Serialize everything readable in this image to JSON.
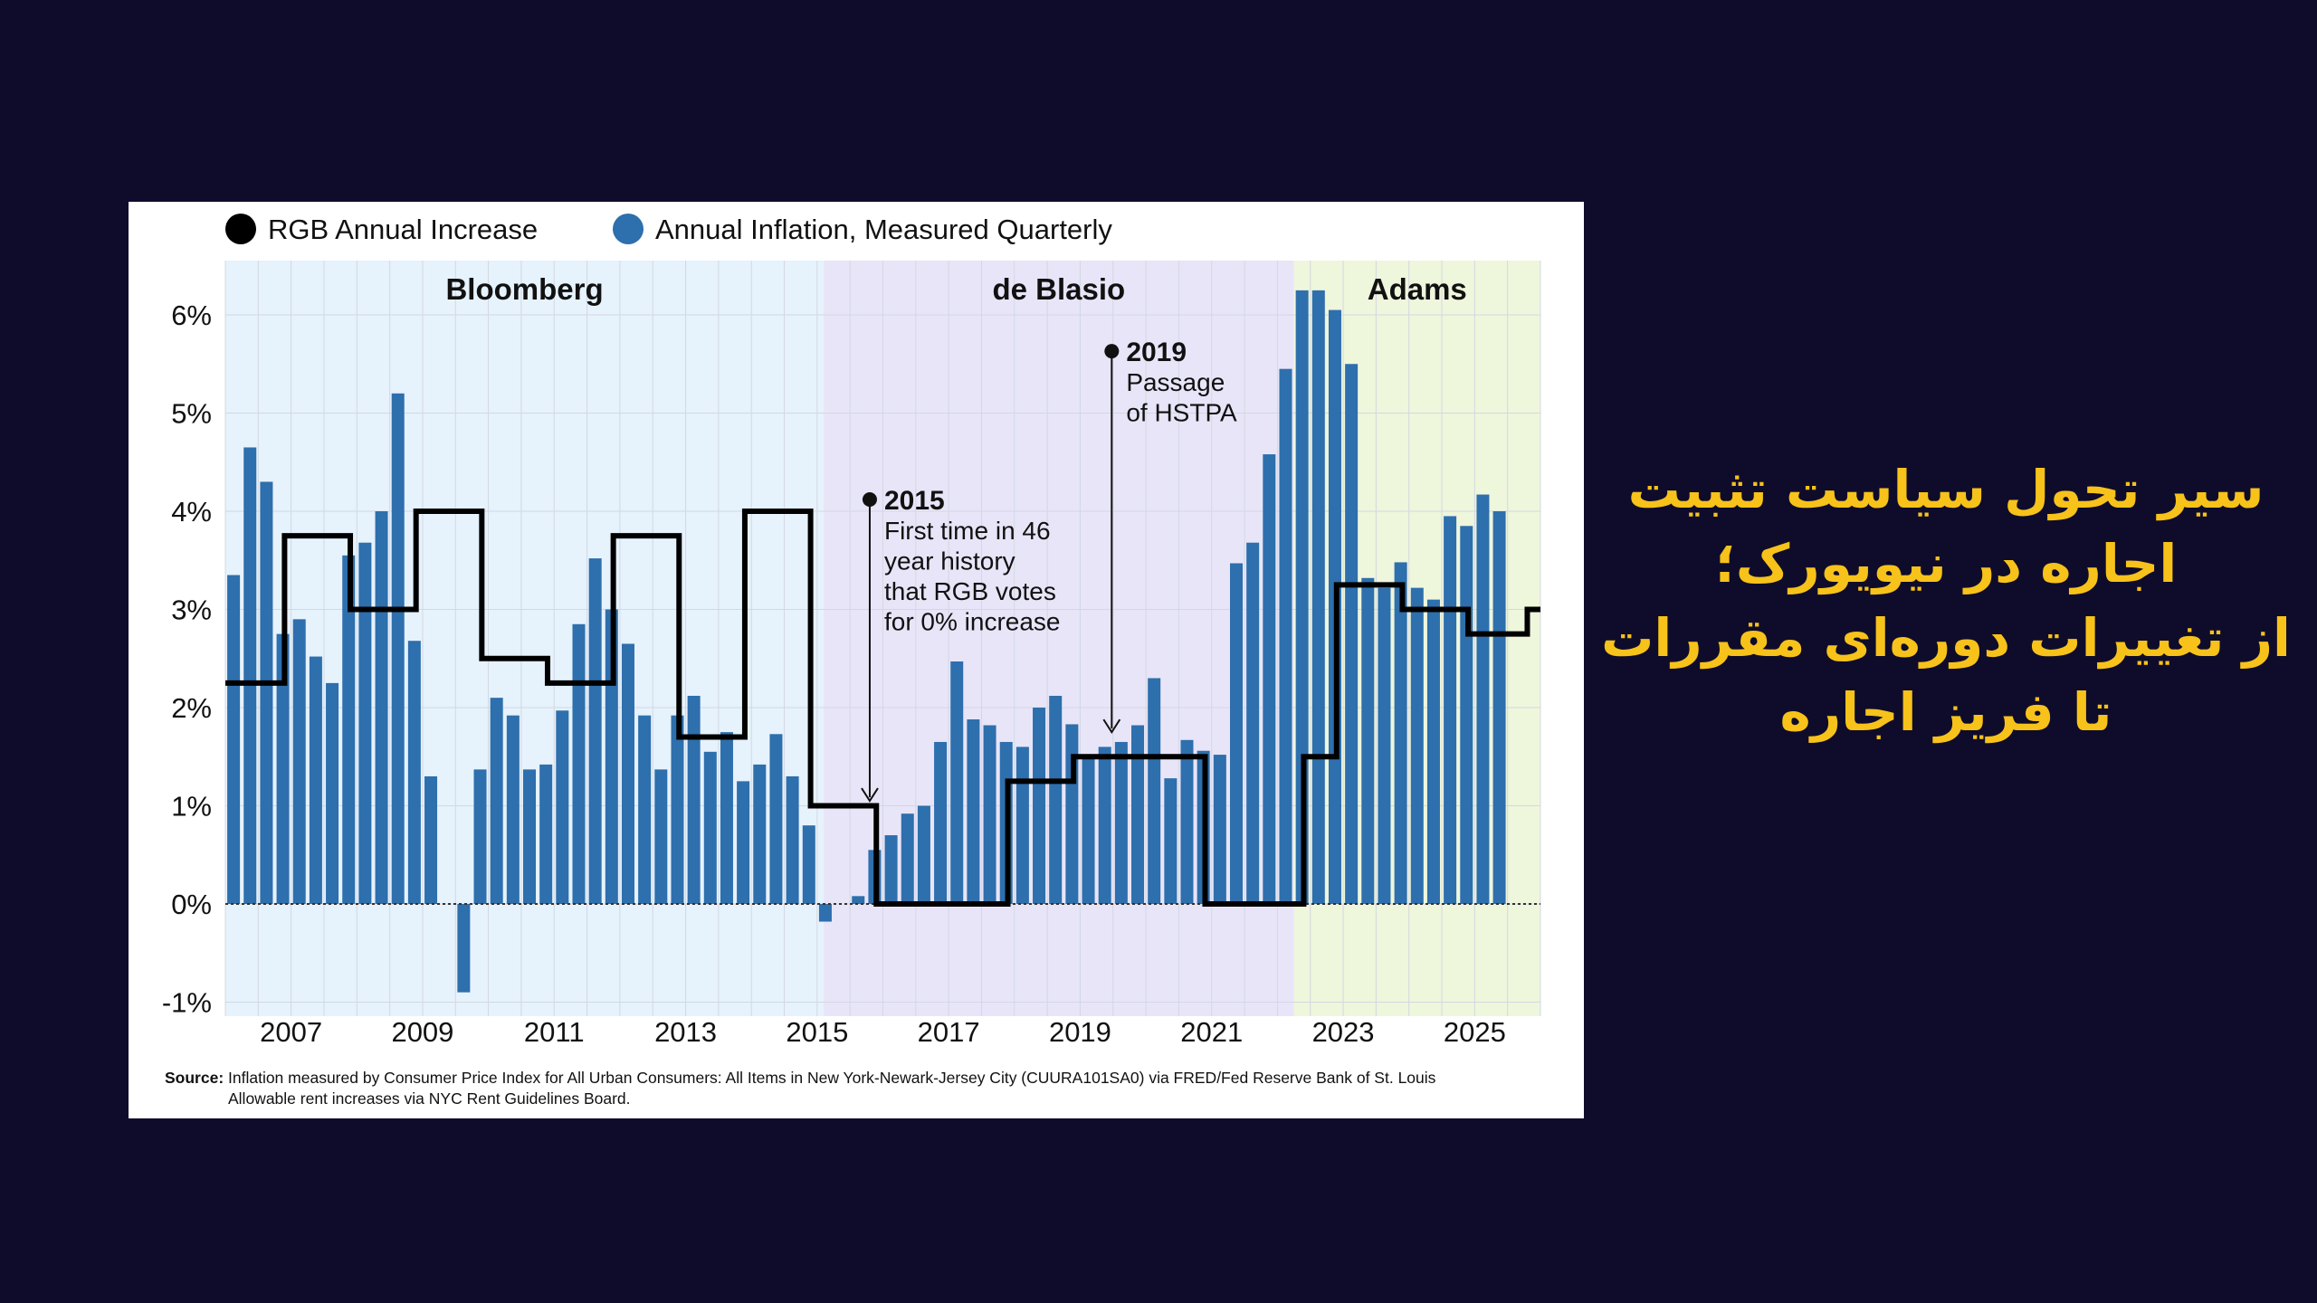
{
  "headline": {
    "lines": [
      "سیر تحول سیاست تثبیت",
      "اجاره در نیویورک؛",
      "از تغییرات دوره‌ای مقررات",
      "تا فریز اجاره"
    ],
    "color": "#f7c21a"
  },
  "source": {
    "label": "Source:",
    "line1": "Inflation measured by Consumer Price Index for All Urban Consumers: All Items in New York-Newark-Jersey City (CUURA101SA0) via FRED/Fed Reserve Bank of St. Louis",
    "line2": "Allowable rent increases via NYC Rent Guidelines Board."
  },
  "colors": {
    "background": "#0f0c2b",
    "bar": "#2e6fad",
    "step": "#000000",
    "bloomberg": "#e6f2fc",
    "deblasio": "#e8e5f8",
    "adams": "#eef6dc"
  },
  "chart_data": {
    "type": "bar",
    "title": "",
    "legend": {
      "placement": "top-left",
      "items": [
        {
          "label": "RGB Annual Increase",
          "color": "#000000"
        },
        {
          "label": "Annual Inflation, Measured Quarterly",
          "color": "#2e6fad"
        }
      ]
    },
    "y_ticks": [
      {
        "value": 6,
        "label": "6%"
      },
      {
        "value": 5,
        "label": "5%"
      },
      {
        "value": 4,
        "label": "4%"
      },
      {
        "value": 3,
        "label": "3%"
      },
      {
        "value": 2,
        "label": "2%"
      },
      {
        "value": 1,
        "label": "1%"
      },
      {
        "value": 0,
        "label": "0%"
      },
      {
        "value": -1,
        "label": "-1%"
      }
    ],
    "ylim": [
      -1,
      6.5
    ],
    "xlim": [
      2006,
      2026
    ],
    "x_ticks": [
      {
        "value": 2007,
        "label": "2007"
      },
      {
        "value": 2009,
        "label": "2009"
      },
      {
        "value": 2011,
        "label": "2011"
      },
      {
        "value": 2013,
        "label": "2013"
      },
      {
        "value": 2015,
        "label": "2015"
      },
      {
        "value": 2017,
        "label": "2017"
      },
      {
        "value": 2019,
        "label": "2019"
      },
      {
        "value": 2021,
        "label": "2021"
      },
      {
        "value": 2023,
        "label": "2023"
      },
      {
        "value": 2025,
        "label": "2025"
      }
    ],
    "grid": true,
    "eras": [
      {
        "name": "Bloomberg",
        "start": 2006,
        "end": 2015.1
      },
      {
        "name": "de Blasio",
        "start": 2015.1,
        "end": 2022.25
      },
      {
        "name": "Adams",
        "start": 2022.25,
        "end": 2026
      }
    ],
    "inflation": {
      "start": 2006.125,
      "step": 0.25,
      "values": [
        3.35,
        4.65,
        4.3,
        2.75,
        2.9,
        2.52,
        2.25,
        3.55,
        3.68,
        4.0,
        5.2,
        2.68,
        1.3,
        0,
        -0.9,
        1.37,
        2.1,
        1.92,
        1.37,
        1.42,
        1.97,
        2.85,
        3.52,
        3.0,
        2.65,
        1.92,
        1.37,
        1.92,
        2.12,
        1.55,
        1.75,
        1.25,
        1.42,
        1.73,
        1.3,
        0.8,
        -0.18,
        0,
        0.08,
        0.55,
        0.7,
        0.92,
        1.0,
        1.65,
        2.47,
        1.88,
        1.82,
        1.65,
        1.6,
        2.0,
        2.12,
        1.83,
        1.48,
        1.6,
        1.65,
        1.82,
        2.3,
        1.28,
        1.67,
        1.56,
        1.52,
        3.47,
        3.68,
        4.58,
        5.45,
        6.25,
        6.25,
        6.05,
        5.5,
        3.32,
        3.22,
        3.48,
        3.22,
        3.1,
        3.95,
        3.85,
        4.17,
        4.0
      ]
    },
    "rgb_increase": {
      "segments": [
        {
          "start": 2006,
          "end": 2006.9,
          "value": 2.25
        },
        {
          "start": 2006.9,
          "end": 2007.9,
          "value": 3.75
        },
        {
          "start": 2007.9,
          "end": 2008.9,
          "value": 3.0
        },
        {
          "start": 2008.9,
          "end": 2009.9,
          "value": 4.0
        },
        {
          "start": 2009.9,
          "end": 2010.9,
          "value": 2.5
        },
        {
          "start": 2010.9,
          "end": 2011.9,
          "value": 2.25
        },
        {
          "start": 2011.9,
          "end": 2012.9,
          "value": 3.75
        },
        {
          "start": 2012.9,
          "end": 2013.9,
          "value": 1.7
        },
        {
          "start": 2013.9,
          "end": 2014.9,
          "value": 4.0
        },
        {
          "start": 2014.9,
          "end": 2015.9,
          "value": 1.0
        },
        {
          "start": 2015.9,
          "end": 2016.9,
          "value": 0
        },
        {
          "start": 2016.9,
          "end": 2017.9,
          "value": 0
        },
        {
          "start": 2017.9,
          "end": 2018.9,
          "value": 1.25
        },
        {
          "start": 2018.9,
          "end": 2019.9,
          "value": 1.5
        },
        {
          "start": 2019.9,
          "end": 2020.9,
          "value": 1.5
        },
        {
          "start": 2020.9,
          "end": 2021.9,
          "value": 0
        },
        {
          "start": 2021.9,
          "end": 2022.4,
          "value": 0
        },
        {
          "start": 2022.4,
          "end": 2022.9,
          "value": 1.5
        },
        {
          "start": 2022.9,
          "end": 2023.9,
          "value": 3.25
        },
        {
          "start": 2023.9,
          "end": 2024.9,
          "value": 3.0
        },
        {
          "start": 2024.9,
          "end": 2025.8,
          "value": 2.75
        },
        {
          "start": 2025.8,
          "end": 2026,
          "value": 3.0
        }
      ]
    },
    "annotations": [
      {
        "year_label": "2015",
        "lines": [
          "First time in 46",
          "year history",
          "that RGB votes",
          "for 0% increase"
        ],
        "x": 2015.8,
        "y_top": 4.12,
        "y_arrow": 1.05
      },
      {
        "year_label": "2019",
        "lines": [
          "Passage",
          "of HSTPA"
        ],
        "x": 2019.48,
        "y_top": 5.63,
        "y_arrow": 1.75
      }
    ]
  }
}
